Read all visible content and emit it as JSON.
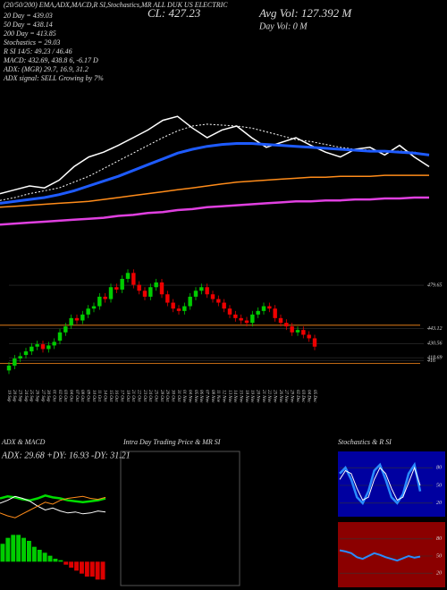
{
  "header": {
    "top_line": "(20/50/200) EMA,ADX,MACD,R SI,Stochastics,MR ALL DUK US ELECTRIC",
    "stats": [
      "20 Day = 439.03",
      "50 Day = 438.14",
      "200 Day = 413.85",
      "Stochastics = 29.03",
      "R          SI 14/5: 49.23 / 46.46",
      "MACD: 432.69, 438.8         6, -6.17 D",
      "ADX:                        (MGR) 29.7, 16.9, 31.2",
      "ADX signal: SELL Growing by 7%"
    ],
    "close": "CL: 427.23",
    "avg_vol": "Avg Vol: 127.392  M",
    "day_vol": "Day Vol: 0   M",
    "intraday_title": "Intra Day Trading Price  & MR        SI"
  },
  "chart_data": [
    {
      "type": "line",
      "ylim": [
        370,
        520
      ],
      "series": [
        {
          "color": "#ffffff",
          "width": 1.5,
          "dash": false,
          "values": [
            412,
            416,
            420,
            418,
            426,
            440,
            450,
            455,
            462,
            470,
            478,
            488,
            492,
            480,
            470,
            478,
            482,
            470,
            460,
            465,
            470,
            462,
            455,
            450,
            458,
            460,
            452,
            462,
            450,
            440
          ]
        },
        {
          "color": "#ffffff",
          "width": 1,
          "dash": true,
          "values": [
            405,
            408,
            412,
            415,
            418,
            424,
            430,
            438,
            446,
            454,
            462,
            470,
            477,
            482,
            484,
            483,
            482,
            480,
            476,
            472,
            468,
            466,
            463,
            460,
            458,
            457,
            456,
            456,
            455,
            452
          ]
        },
        {
          "color": "#1e5bff",
          "width": 3,
          "dash": false,
          "values": [
            402,
            404,
            406,
            408,
            411,
            415,
            420,
            425,
            430,
            436,
            442,
            448,
            454,
            458,
            461,
            463,
            464,
            464,
            463,
            462,
            461,
            460,
            459,
            458,
            457,
            456,
            456,
            455,
            454,
            452
          ]
        },
        {
          "color": "#ff8c1a",
          "width": 1.5,
          "dash": false,
          "values": [
            398,
            399,
            400,
            401,
            402,
            403,
            404,
            406,
            408,
            410,
            412,
            414,
            416,
            418,
            420,
            422,
            424,
            425,
            426,
            427,
            428,
            429,
            429,
            430,
            430,
            430,
            431,
            431,
            431,
            431
          ]
        },
        {
          "color": "#e040e0",
          "width": 2.5,
          "dash": false,
          "values": [
            380,
            381,
            382,
            383,
            384,
            385,
            386,
            387,
            389,
            390,
            392,
            393,
            395,
            396,
            398,
            399,
            400,
            401,
            402,
            403,
            404,
            404,
            405,
            405,
            406,
            406,
            407,
            407,
            408,
            408
          ]
        }
      ]
    },
    {
      "type": "candlestick",
      "ylim": [
        400,
        500
      ],
      "yticks": [
        479.65,
        443.12,
        430.56,
        418.69,
        416
      ],
      "levels": [
        446,
        414
      ],
      "level_color": "#ff8c1a",
      "up_color": "#00cc00",
      "down_color": "#ee0000",
      "categories": [
        "19 Sep",
        "20 Sep",
        "23 Sep",
        "24 Sep",
        "25 Sep",
        "26 Sep",
        "27 Sep",
        "30 Sep",
        "01 Oct",
        "02 Oct",
        "03 Oct",
        "04 Oct",
        "07 Oct",
        "08 Oct",
        "09 Oct",
        "10 Oct",
        "11 Oct",
        "14 Oct",
        "15 Oct",
        "16 Oct",
        "17 Oct",
        "18 Oct",
        "21 Oct",
        "22 Oct",
        "23 Oct",
        "24 Oct",
        "25 Oct",
        "28 Oct",
        "29 Oct",
        "30 Oct",
        "31 Oct",
        "01 Nov",
        "04 Nov",
        "05 Nov",
        "06 Nov",
        "07 Nov",
        "08 Nov",
        "11 Nov",
        "12 Nov",
        "13 Nov",
        "14 Nov",
        "15 Nov",
        "18 Nov",
        "19 Nov",
        "20 Nov",
        "21 Nov",
        "22 Nov",
        "25 Nov",
        "26 Nov",
        "27 Nov",
        "29 Nov",
        "02 Dec",
        "03 Dec",
        "04 Dec",
        "05 Dec"
      ],
      "open": [
        408,
        412,
        418,
        421,
        424,
        428,
        430,
        426,
        429,
        433,
        440,
        446,
        452,
        450,
        455,
        460,
        462,
        470,
        468,
        478,
        476,
        485,
        490,
        480,
        475,
        470,
        478,
        482,
        472,
        465,
        460,
        458,
        462,
        470,
        475,
        478,
        472,
        468,
        465,
        460,
        455,
        452,
        450,
        448,
        455,
        458,
        462,
        460,
        452,
        448,
        445,
        440,
        442,
        438,
        435
      ],
      "high": [
        415,
        421,
        423,
        427,
        431,
        433,
        433,
        432,
        435,
        443,
        448,
        455,
        455,
        458,
        463,
        465,
        473,
        473,
        481,
        481,
        488,
        493,
        493,
        483,
        478,
        481,
        485,
        485,
        475,
        468,
        463,
        465,
        473,
        478,
        481,
        481,
        475,
        471,
        468,
        463,
        458,
        455,
        453,
        458,
        461,
        465,
        465,
        463,
        455,
        451,
        448,
        445,
        445,
        441,
        438
      ],
      "low": [
        405,
        409,
        415,
        418,
        421,
        425,
        423,
        423,
        426,
        430,
        437,
        443,
        447,
        447,
        452,
        457,
        459,
        465,
        465,
        473,
        473,
        482,
        477,
        472,
        467,
        467,
        475,
        469,
        462,
        457,
        455,
        455,
        459,
        467,
        472,
        469,
        465,
        462,
        457,
        452,
        449,
        447,
        445,
        445,
        452,
        455,
        457,
        449,
        445,
        442,
        437,
        437,
        435,
        432,
        425
      ],
      "close": [
        412,
        418,
        420,
        424,
        428,
        430,
        426,
        429,
        432,
        440,
        445,
        452,
        450,
        455,
        460,
        462,
        470,
        468,
        478,
        476,
        485,
        490,
        480,
        475,
        470,
        478,
        482,
        472,
        465,
        460,
        458,
        462,
        470,
        475,
        478,
        472,
        468,
        465,
        460,
        455,
        452,
        450,
        448,
        455,
        458,
        462,
        460,
        452,
        448,
        445,
        440,
        442,
        438,
        435,
        428
      ]
    },
    {
      "type": "line",
      "title": "ADX  & MACD",
      "subtitle": "ADX: 29.68  +DY: 16.93  -DY: 31.21",
      "ylim": [
        0,
        60
      ],
      "series": [
        {
          "color": "#00dd00",
          "width": 2.5,
          "dash": false,
          "values": [
            30,
            32,
            31,
            29,
            28,
            30,
            33,
            31,
            30,
            28,
            27,
            26,
            27,
            28,
            30
          ]
        },
        {
          "color": "#ffffff",
          "width": 1,
          "dash": false,
          "values": [
            25,
            28,
            32,
            30,
            27,
            22,
            18,
            20,
            17,
            15,
            16,
            14,
            15,
            17,
            16
          ]
        },
        {
          "color": "#ff8c1a",
          "width": 1,
          "dash": false,
          "values": [
            15,
            12,
            10,
            14,
            18,
            22,
            26,
            24,
            28,
            30,
            31,
            32,
            30,
            29,
            31
          ]
        }
      ]
    },
    {
      "type": "bar",
      "ylim": [
        -8,
        10
      ],
      "color": "#00cc00",
      "negative_color": "#dd0000",
      "values": [
        6,
        8,
        9,
        9,
        8,
        7,
        5,
        4,
        3,
        2,
        1,
        0.5,
        -1,
        -2,
        -3,
        -4,
        -5,
        -5,
        -6,
        -6
      ]
    },
    {
      "type": "line",
      "title": "Stochastics & R          SI",
      "ylim": [
        0,
        100
      ],
      "yticks": [
        80,
        50,
        20
      ],
      "background": "#0000a0",
      "series": [
        {
          "color": "#2a8cff",
          "width": 2.5,
          "dash": false,
          "values": [
            70,
            80,
            60,
            30,
            20,
            40,
            75,
            85,
            60,
            30,
            20,
            35,
            70,
            85,
            40
          ]
        },
        {
          "color": "#ffffff",
          "width": 1,
          "dash": false,
          "values": [
            60,
            75,
            70,
            45,
            25,
            30,
            60,
            80,
            70,
            45,
            25,
            30,
            55,
            80,
            50
          ]
        }
      ]
    },
    {
      "type": "line",
      "ylim": [
        0,
        100
      ],
      "yticks": [
        80,
        50,
        20
      ],
      "background": "#8b0000",
      "series": [
        {
          "color": "#2a8cff",
          "width": 2,
          "dash": false,
          "values": [
            60,
            58,
            55,
            48,
            45,
            50,
            55,
            52,
            48,
            45,
            42,
            46,
            50,
            47,
            49
          ]
        }
      ]
    }
  ]
}
